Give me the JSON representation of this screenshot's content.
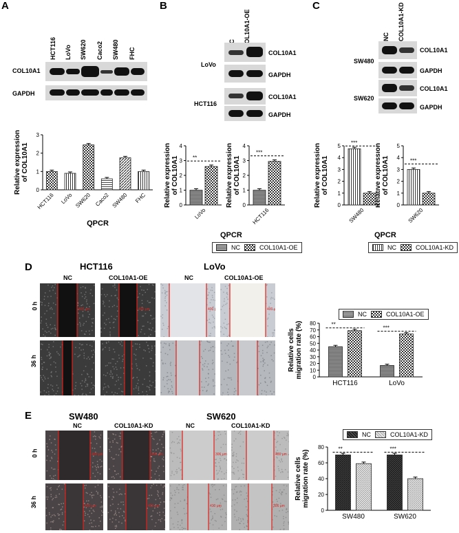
{
  "panels": {
    "A": {
      "letter": "A",
      "lanes": [
        "HCT116",
        "LoVo",
        "SW620",
        "Caco2",
        "SW480",
        "FHC"
      ],
      "rows": [
        "COL10A1",
        "GAPDH"
      ],
      "chart_xlabel": "QPCR"
    },
    "B": {
      "letter": "B",
      "lanes": [
        "NC",
        "COL10A1-OE"
      ],
      "cell_lines": [
        "LoVo",
        "HCT116"
      ],
      "rows": [
        "COL10A1",
        "GAPDH"
      ],
      "chart_xlabel": "QPCR",
      "legend": [
        "NC",
        "COL10A1-OE"
      ]
    },
    "C": {
      "letter": "C",
      "lanes": [
        "NC",
        "COL10A1-KD"
      ],
      "cell_lines": [
        "SW480",
        "SW620"
      ],
      "rows": [
        "COL10A1",
        "GAPDH"
      ],
      "chart_xlabel": "QPCR",
      "legend": [
        "NC",
        "COL10A1-KD"
      ]
    },
    "D": {
      "letter": "D",
      "titles": [
        "HCT116",
        "LoVo"
      ],
      "columns": [
        "NC",
        "COL10A1-OE",
        "NC",
        "COL10A1-OE"
      ],
      "rows": [
        "0 h",
        "36 h"
      ],
      "legend": [
        "NC",
        "COL10A1-OE"
      ],
      "scale_labels": [
        "400 μm",
        "400 μm",
        "400 μm",
        "400 μm"
      ]
    },
    "E": {
      "letter": "E",
      "titles": [
        "SW480",
        "SW620"
      ],
      "columns": [
        "NC",
        "COL10A1-KD",
        "NC",
        "COL10A1-KD"
      ],
      "rows": [
        "0 h",
        "36 h"
      ],
      "legend": [
        "NC",
        "COL10A1-KD"
      ],
      "scale_labels": [
        "400 μm",
        "400 μm",
        "306 μm",
        "400 μm",
        "400 μm",
        "400 μm",
        "410 μm",
        "306 μm"
      ]
    }
  },
  "chart_data": [
    {
      "id": "A-qpcr",
      "type": "bar",
      "ylabel": "Relative expression\nof COL10A1",
      "xlabel": "QPCR",
      "categories": [
        "HCT116",
        "LoVo",
        "SW620",
        "Caco2",
        "SW480",
        "FHC"
      ],
      "values": [
        1.0,
        0.9,
        2.45,
        0.6,
        1.75,
        1.0
      ],
      "ylim": [
        0,
        3
      ],
      "yticks": [
        0,
        1,
        2,
        3
      ],
      "patterns": [
        "check",
        "vlines",
        "check",
        "hlines",
        "diag",
        "vlines"
      ]
    },
    {
      "id": "B-lovo",
      "type": "bar",
      "ylabel": "Relative expression\nof COL10A1",
      "categories": [
        "LoVo"
      ],
      "series": [
        {
          "name": "NC",
          "values": [
            1.0
          ]
        },
        {
          "name": "COL10A1-OE",
          "values": [
            2.6
          ]
        }
      ],
      "ylim": [
        0,
        4
      ],
      "yticks": [
        0,
        1,
        2,
        3,
        4
      ],
      "significance": "**"
    },
    {
      "id": "B-hct116",
      "type": "bar",
      "ylabel": "Relative expression\nof COL10A1",
      "categories": [
        "HCT116"
      ],
      "series": [
        {
          "name": "NC",
          "values": [
            1.0
          ]
        },
        {
          "name": "COL10A1-OE",
          "values": [
            2.95
          ]
        }
      ],
      "ylim": [
        0,
        4
      ],
      "yticks": [
        0,
        1,
        2,
        3,
        4
      ],
      "significance": "***"
    },
    {
      "id": "C-sw480",
      "type": "bar",
      "ylabel": "Relative expression\nof COL10A1",
      "categories": [
        "SW480"
      ],
      "series": [
        {
          "name": "NC",
          "values": [
            4.75
          ]
        },
        {
          "name": "COL10A1-KD",
          "values": [
            1.0
          ]
        }
      ],
      "ylim": [
        0,
        5
      ],
      "yticks": [
        0,
        1,
        2,
        3,
        4,
        5
      ],
      "significance": "***"
    },
    {
      "id": "C-sw620",
      "type": "bar",
      "ylabel": "Relative expression\nof COL10A1",
      "categories": [
        "SW620"
      ],
      "series": [
        {
          "name": "NC",
          "values": [
            3.0
          ]
        },
        {
          "name": "COL10A1-KD",
          "values": [
            1.0
          ]
        }
      ],
      "ylim": [
        0,
        5
      ],
      "yticks": [
        0,
        1,
        2,
        3,
        4,
        5
      ],
      "significance": "***"
    },
    {
      "id": "D-migration",
      "type": "bar",
      "ylabel": "Relative cells\nmigration rate (%)",
      "categories": [
        "HCT116",
        "LoVo"
      ],
      "series": [
        {
          "name": "NC",
          "values": [
            45,
            17
          ]
        },
        {
          "name": "COL10A1-OE",
          "values": [
            69,
            64
          ]
        }
      ],
      "ylim": [
        0,
        80
      ],
      "yticks": [
        0,
        10,
        20,
        30,
        40,
        50,
        60,
        70,
        80
      ],
      "significance": [
        "**",
        "***"
      ]
    },
    {
      "id": "E-migration",
      "type": "bar",
      "ylabel": "Relative cells\nmigration rate (%)",
      "categories": [
        "SW480",
        "SW620"
      ],
      "series": [
        {
          "name": "NC",
          "values": [
            70,
            70
          ]
        },
        {
          "name": "COL10A1-KD",
          "values": [
            59,
            40
          ]
        }
      ],
      "ylim": [
        0,
        80
      ],
      "yticks": [
        0,
        20,
        40,
        60,
        80
      ],
      "significance": [
        "**",
        "***"
      ]
    }
  ]
}
